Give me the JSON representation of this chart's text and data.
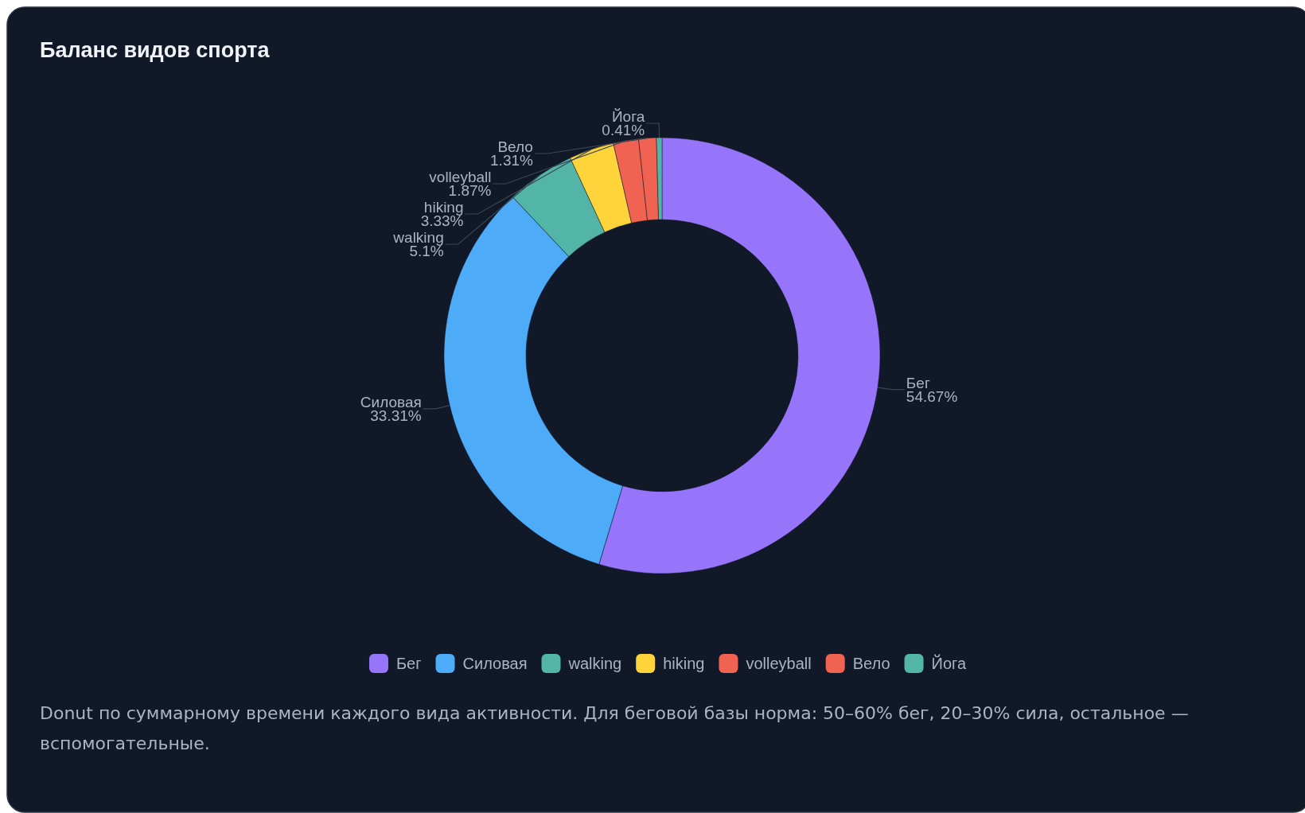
{
  "chart_data": {
    "type": "donut",
    "title": "Баланс видов спорта",
    "categories": [
      "Бег",
      "Силовая",
      "walking",
      "hiking",
      "volleyball",
      "Вело",
      "Йога"
    ],
    "values": [
      54.67,
      33.31,
      5.1,
      3.33,
      1.87,
      1.31,
      0.41
    ],
    "colors": [
      "#9775fa",
      "#4dabf7",
      "#52b5a8",
      "#ffd43b",
      "#f06352",
      "#f06352",
      "#52b5a8"
    ],
    "value_labels": [
      "54.67%",
      "33.31%",
      "5.1%",
      "3.33%",
      "1.87%",
      "1.31%",
      "0.41%"
    ],
    "legend": "bottom",
    "annotations": [
      "Donut по суммарному времени каждого вида активности. Для беговой базы норма: 50–60% бег, 20–30% сила, остальное — вспомогательные."
    ]
  }
}
